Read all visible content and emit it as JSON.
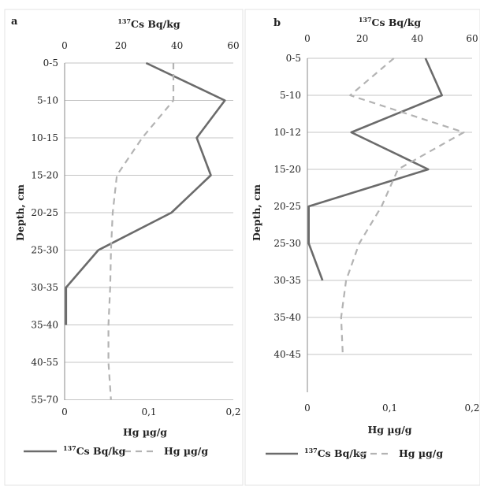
{
  "chart_data": [
    {
      "type": "line",
      "panel_label": "a",
      "orientation": "vertical-depth-profile",
      "top_axis": {
        "label_sup": "137",
        "label_main": "Cs Bq/kg",
        "ticks": [
          "0",
          "20",
          "40",
          "60"
        ],
        "range": [
          0,
          60
        ]
      },
      "bottom_axis": {
        "label": "Hg µg/g",
        "ticks": [
          "0",
          "0,1",
          "0,2"
        ],
        "range": [
          0,
          0.2
        ]
      },
      "ylabel": "Depth, cm",
      "depth_categories": [
        "0-5",
        "5-10",
        "10-15",
        "15-20",
        "20-25",
        "25-30",
        "30-35",
        "35-40",
        "40-55",
        "55-70"
      ],
      "series": [
        {
          "name_sup": "137",
          "name_main": "Cs Bq/kg",
          "axis": "top",
          "style": "solid",
          "color": "#6b6b6b",
          "points": [
            [
              29,
              0
            ],
            [
              57,
              1
            ],
            [
              47,
              2
            ],
            [
              52,
              3
            ],
            [
              38,
              4
            ],
            [
              12,
              5
            ],
            [
              0.5,
              6
            ],
            [
              0.5,
              7
            ]
          ]
        },
        {
          "name_main": "Hg µg/g",
          "axis": "bottom",
          "style": "dashed",
          "color": "#b3b3b3",
          "points": [
            [
              0.129,
              0
            ],
            [
              0.129,
              1
            ],
            [
              0.092,
              2
            ],
            [
              0.062,
              3
            ],
            [
              0.057,
              4
            ],
            [
              0.055,
              5
            ],
            [
              0.054,
              6
            ],
            [
              0.052,
              7
            ],
            [
              0.052,
              8
            ],
            [
              0.055,
              9
            ]
          ]
        }
      ],
      "grid": true,
      "legend": "bottom"
    },
    {
      "type": "line",
      "panel_label": "b",
      "orientation": "vertical-depth-profile",
      "top_axis": {
        "label_sup": "137",
        "label_main": "Cs Bq/kg",
        "ticks": [
          "0",
          "20",
          "40",
          "60"
        ],
        "range": [
          0,
          60
        ]
      },
      "bottom_axis": {
        "label": "Hg µg/g",
        "ticks": [
          "0",
          "0,1",
          "0,2"
        ],
        "range": [
          0,
          0.2
        ]
      },
      "ylabel": "Depth, cm",
      "depth_categories": [
        "0-5",
        "5-10",
        "10-12",
        "15-20",
        "20-25",
        "25-30",
        "30-35",
        "35-40",
        "40-45"
      ],
      "series": [
        {
          "name_sup": "137",
          "name_main": "Cs Bq/kg",
          "axis": "top",
          "style": "solid",
          "color": "#6b6b6b",
          "points": [
            [
              43,
              0
            ],
            [
              49,
              1
            ],
            [
              16,
              2
            ],
            [
              44,
              3
            ],
            [
              0.5,
              4
            ],
            [
              0.5,
              5
            ],
            [
              5.5,
              6
            ]
          ]
        },
        {
          "name_main": "Hg µg/g",
          "axis": "bottom",
          "style": "dashed",
          "color": "#b3b3b3",
          "points": [
            [
              0.105,
              0
            ],
            [
              0.052,
              1
            ],
            [
              0.19,
              2
            ],
            [
              0.11,
              3
            ],
            [
              0.09,
              4
            ],
            [
              0.063,
              5
            ],
            [
              0.047,
              6
            ],
            [
              0.041,
              7
            ],
            [
              0.043,
              8
            ]
          ]
        }
      ],
      "grid": true,
      "legend": "bottom"
    }
  ]
}
